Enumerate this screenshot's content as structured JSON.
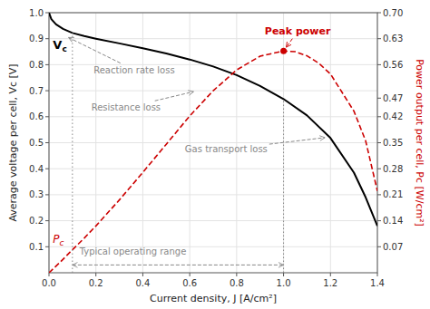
{
  "chart_data": {
    "type": "line",
    "x_label": "Current density, J [A/cm²]",
    "y_label": "Average voltage per cell, Vc [V]",
    "y2_label": "Power output per cell, Pc [W/cm²]",
    "xlim": [
      0,
      1.4
    ],
    "xticks": [
      {
        "value": 0,
        "label": "0.0"
      },
      0.2,
      0.4,
      0.6,
      0.8,
      {
        "value": 1.0,
        "label": "1.0"
      },
      1.2,
      1.4
    ],
    "ylim": [
      0,
      1.0
    ],
    "yticks": [
      0.1,
      0.2,
      0.3,
      0.4,
      0.5,
      0.6,
      0.7,
      0.8,
      0.9,
      {
        "value": 1.0,
        "label": "1.0"
      }
    ],
    "y2lim": [
      0,
      0.7
    ],
    "y2ticks": [
      0.07,
      0.14,
      0.21,
      0.28,
      0.35,
      0.42,
      0.47,
      0.56,
      0.63,
      {
        "value": 0.7,
        "label": "0.70"
      }
    ],
    "grid": true,
    "series": [
      {
        "name": "Vc",
        "color": "#000000",
        "line_style": "solid",
        "x": [
          0.0,
          0.01,
          0.03,
          0.06,
          0.1,
          0.15,
          0.2,
          0.3,
          0.4,
          0.5,
          0.6,
          0.7,
          0.8,
          0.9,
          1.0,
          1.1,
          1.2,
          1.3,
          1.35,
          1.4
        ],
        "values": [
          1.0,
          0.975,
          0.955,
          0.938,
          0.922,
          0.91,
          0.9,
          0.882,
          0.863,
          0.843,
          0.82,
          0.793,
          0.76,
          0.718,
          0.668,
          0.605,
          0.518,
          0.385,
          0.29,
          0.18
        ]
      },
      {
        "name": "Pc",
        "color": "#cc0000",
        "line_style": "dashed",
        "axis": "y2",
        "x": [
          0.0,
          0.05,
          0.1,
          0.15,
          0.2,
          0.3,
          0.4,
          0.5,
          0.6,
          0.7,
          0.8,
          0.9,
          1.0,
          1.05,
          1.1,
          1.15,
          1.2,
          1.3,
          1.35,
          1.4
        ],
        "values": [
          0.0,
          0.03,
          0.062,
          0.093,
          0.126,
          0.196,
          0.27,
          0.346,
          0.422,
          0.49,
          0.546,
          0.583,
          0.597,
          0.595,
          0.584,
          0.564,
          0.535,
          0.435,
          0.355,
          0.22
        ]
      }
    ],
    "annotations": [
      {
        "text": "Reaction rate loss",
        "x": 0.08,
        "y": 0.906
      },
      {
        "text": "Resistance loss",
        "x": 0.62,
        "y": 0.697
      },
      {
        "text": "Gas transport loss",
        "x": 1.18,
        "y": 0.52
      },
      {
        "text": "Peak power",
        "x": 1.0,
        "y": 0.597,
        "axis": "y2",
        "color": "#cc0000",
        "marker": "circle"
      },
      {
        "text": "Typical operating range",
        "x": [
          0.1,
          1.0
        ],
        "y": [
          0.922,
          0.668
        ]
      }
    ]
  }
}
